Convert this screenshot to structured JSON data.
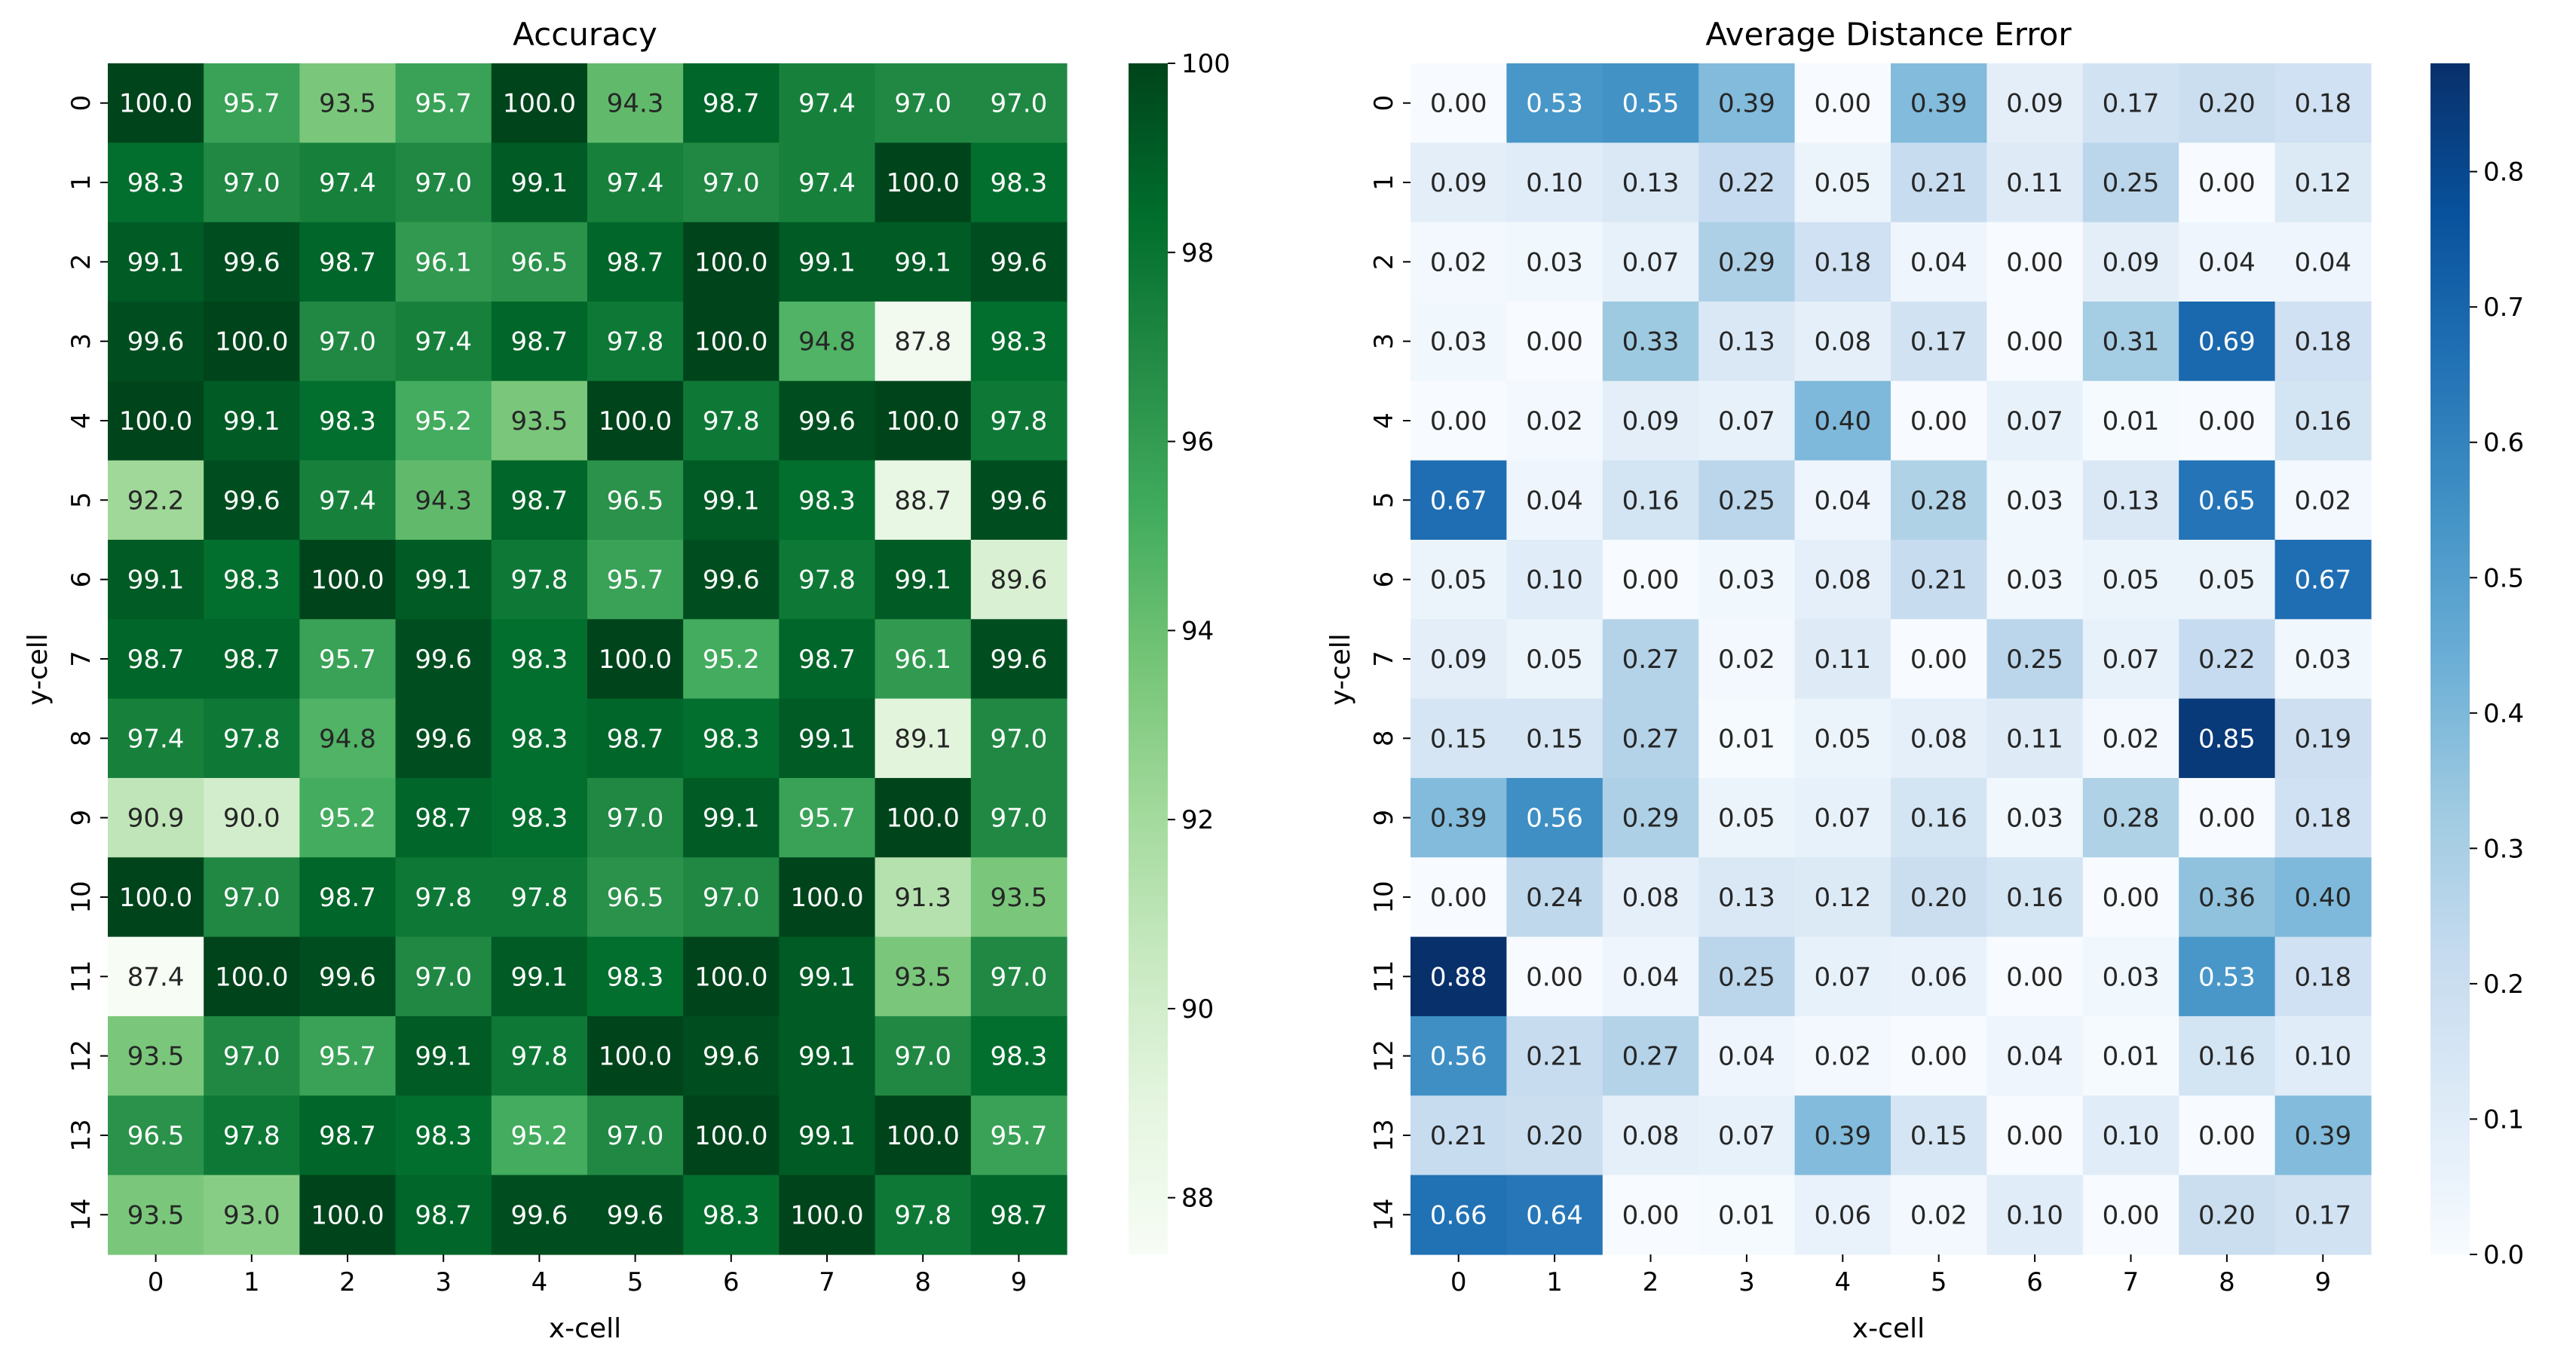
{
  "chart_data": [
    {
      "type": "heatmap",
      "title": "Accuracy",
      "xlabel": "x-cell",
      "ylabel": "y-cell",
      "x_categories": [
        "0",
        "1",
        "2",
        "3",
        "4",
        "5",
        "6",
        "7",
        "8",
        "9"
      ],
      "y_categories": [
        "0",
        "1",
        "2",
        "3",
        "4",
        "5",
        "6",
        "7",
        "8",
        "9",
        "10",
        "11",
        "12",
        "13",
        "14"
      ],
      "values": [
        [
          100.0,
          95.7,
          93.5,
          95.7,
          100.0,
          94.3,
          98.7,
          97.4,
          97.0,
          97.0
        ],
        [
          98.3,
          97.0,
          97.4,
          97.0,
          99.1,
          97.4,
          97.0,
          97.4,
          100.0,
          98.3
        ],
        [
          99.1,
          99.6,
          98.7,
          96.1,
          96.5,
          98.7,
          100.0,
          99.1,
          99.1,
          99.6
        ],
        [
          99.6,
          100.0,
          97.0,
          97.4,
          98.7,
          97.8,
          100.0,
          94.8,
          87.8,
          98.3
        ],
        [
          100.0,
          99.1,
          98.3,
          95.2,
          93.5,
          100.0,
          97.8,
          99.6,
          100.0,
          97.8
        ],
        [
          92.2,
          99.6,
          97.4,
          94.3,
          98.7,
          96.5,
          99.1,
          98.3,
          88.7,
          99.6
        ],
        [
          99.1,
          98.3,
          100.0,
          99.1,
          97.8,
          95.7,
          99.6,
          97.8,
          99.1,
          89.6
        ],
        [
          98.7,
          98.7,
          95.7,
          99.6,
          98.3,
          100.0,
          95.2,
          98.7,
          96.1,
          99.6
        ],
        [
          97.4,
          97.8,
          94.8,
          99.6,
          98.3,
          98.7,
          98.3,
          99.1,
          89.1,
          97.0
        ],
        [
          90.9,
          90.0,
          95.2,
          98.7,
          98.3,
          97.0,
          99.1,
          95.7,
          100.0,
          97.0
        ],
        [
          100.0,
          97.0,
          98.7,
          97.8,
          97.8,
          96.5,
          97.0,
          100.0,
          91.3,
          93.5
        ],
        [
          87.4,
          100.0,
          99.6,
          97.0,
          99.1,
          98.3,
          100.0,
          99.1,
          93.5,
          97.0
        ],
        [
          93.5,
          97.0,
          95.7,
          99.1,
          97.8,
          100.0,
          99.6,
          99.1,
          97.0,
          98.3
        ],
        [
          96.5,
          97.8,
          98.7,
          98.3,
          95.2,
          97.0,
          100.0,
          99.1,
          100.0,
          95.7
        ],
        [
          93.5,
          93.0,
          100.0,
          98.7,
          99.6,
          99.6,
          98.3,
          100.0,
          97.8,
          98.7
        ]
      ],
      "value_format_decimals": 1,
      "colormap": "Greens",
      "colormap_stops": [
        "#f7fcf5",
        "#e5f5e0",
        "#c7e9c0",
        "#a1d99b",
        "#74c476",
        "#41ab5d",
        "#238b45",
        "#006d2c",
        "#00441b"
      ],
      "vmin": 87.4,
      "vmax": 100.0,
      "colorbar_ticks": [
        {
          "value": 88,
          "label": "88"
        },
        {
          "value": 90,
          "label": "90"
        },
        {
          "value": 92,
          "label": "92"
        },
        {
          "value": 94,
          "label": "94"
        },
        {
          "value": 96,
          "label": "96"
        },
        {
          "value": 98,
          "label": "98"
        },
        {
          "value": 100,
          "label": "100"
        }
      ]
    },
    {
      "type": "heatmap",
      "title": "Average Distance Error",
      "xlabel": "x-cell",
      "ylabel": "y-cell",
      "x_categories": [
        "0",
        "1",
        "2",
        "3",
        "4",
        "5",
        "6",
        "7",
        "8",
        "9"
      ],
      "y_categories": [
        "0",
        "1",
        "2",
        "3",
        "4",
        "5",
        "6",
        "7",
        "8",
        "9",
        "10",
        "11",
        "12",
        "13",
        "14"
      ],
      "values": [
        [
          0.0,
          0.53,
          0.55,
          0.39,
          0.0,
          0.39,
          0.09,
          0.17,
          0.2,
          0.18
        ],
        [
          0.09,
          0.1,
          0.13,
          0.22,
          0.05,
          0.21,
          0.11,
          0.25,
          0.0,
          0.12
        ],
        [
          0.02,
          0.03,
          0.07,
          0.29,
          0.18,
          0.04,
          0.0,
          0.09,
          0.04,
          0.04
        ],
        [
          0.03,
          0.0,
          0.33,
          0.13,
          0.08,
          0.17,
          0.0,
          0.31,
          0.69,
          0.18
        ],
        [
          0.0,
          0.02,
          0.09,
          0.07,
          0.4,
          0.0,
          0.07,
          0.01,
          0.0,
          0.16
        ],
        [
          0.67,
          0.04,
          0.16,
          0.25,
          0.04,
          0.28,
          0.03,
          0.13,
          0.65,
          0.02
        ],
        [
          0.05,
          0.1,
          0.0,
          0.03,
          0.08,
          0.21,
          0.03,
          0.05,
          0.05,
          0.67
        ],
        [
          0.09,
          0.05,
          0.27,
          0.02,
          0.11,
          0.0,
          0.25,
          0.07,
          0.22,
          0.03
        ],
        [
          0.15,
          0.15,
          0.27,
          0.01,
          0.05,
          0.08,
          0.11,
          0.02,
          0.85,
          0.19
        ],
        [
          0.39,
          0.56,
          0.29,
          0.05,
          0.07,
          0.16,
          0.03,
          0.28,
          0.0,
          0.18
        ],
        [
          0.0,
          0.24,
          0.08,
          0.13,
          0.12,
          0.2,
          0.16,
          0.0,
          0.36,
          0.4
        ],
        [
          0.88,
          0.0,
          0.04,
          0.25,
          0.07,
          0.06,
          0.0,
          0.03,
          0.53,
          0.18
        ],
        [
          0.56,
          0.21,
          0.27,
          0.04,
          0.02,
          0.0,
          0.04,
          0.01,
          0.16,
          0.1
        ],
        [
          0.21,
          0.2,
          0.08,
          0.07,
          0.39,
          0.15,
          0.0,
          0.1,
          0.0,
          0.39
        ],
        [
          0.66,
          0.64,
          0.0,
          0.01,
          0.06,
          0.02,
          0.1,
          0.0,
          0.2,
          0.17
        ]
      ],
      "value_format_decimals": 2,
      "colormap": "Blues",
      "colormap_stops": [
        "#f7fbff",
        "#deebf7",
        "#c6dbef",
        "#9ecae1",
        "#6baed6",
        "#4292c6",
        "#2171b5",
        "#08519c",
        "#08306b"
      ],
      "vmin": 0.0,
      "vmax": 0.88,
      "colorbar_ticks": [
        {
          "value": 0.0,
          "label": "0.0"
        },
        {
          "value": 0.1,
          "label": "0.1"
        },
        {
          "value": 0.2,
          "label": "0.2"
        },
        {
          "value": 0.3,
          "label": "0.3"
        },
        {
          "value": 0.4,
          "label": "0.4"
        },
        {
          "value": 0.5,
          "label": "0.5"
        },
        {
          "value": 0.6,
          "label": "0.6"
        },
        {
          "value": 0.7,
          "label": "0.7"
        },
        {
          "value": 0.8,
          "label": "0.8"
        }
      ]
    }
  ]
}
